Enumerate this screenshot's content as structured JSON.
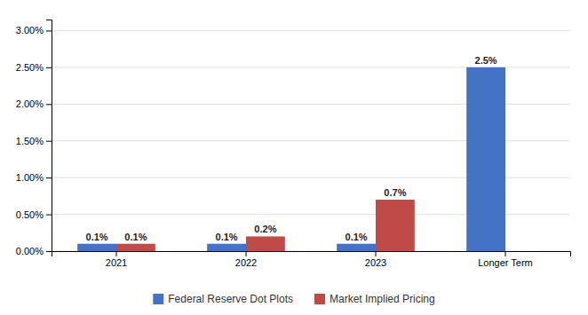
{
  "chart_data": {
    "type": "bar",
    "categories": [
      "2021",
      "2022",
      "2023",
      "Longer Term"
    ],
    "series": [
      {
        "name": "Federal Reserve Dot Plots",
        "color": "#4472C4",
        "values": [
          0.001,
          0.001,
          0.001,
          0.025
        ],
        "value_labels": [
          "0.1%",
          "0.1%",
          "0.1%",
          "2.5%"
        ]
      },
      {
        "name": "Market Implied Pricing",
        "color": "#BE4B48",
        "values": [
          0.001,
          0.002,
          0.007,
          null
        ],
        "value_labels": [
          "0.1%",
          "0.2%",
          "0.7%",
          null
        ]
      }
    ],
    "ylim": [
      0,
      0.0315
    ],
    "yticks": [
      {
        "value": 0.0,
        "label": "0.00%"
      },
      {
        "value": 0.005,
        "label": "0.50%"
      },
      {
        "value": 0.01,
        "label": "1.00%"
      },
      {
        "value": 0.015,
        "label": "1.50%"
      },
      {
        "value": 0.02,
        "label": "2.00%"
      },
      {
        "value": 0.025,
        "label": "2.50%"
      },
      {
        "value": 0.03,
        "label": "3.00%"
      }
    ],
    "grid": true,
    "legend": "bottom",
    "data_labels": true
  }
}
